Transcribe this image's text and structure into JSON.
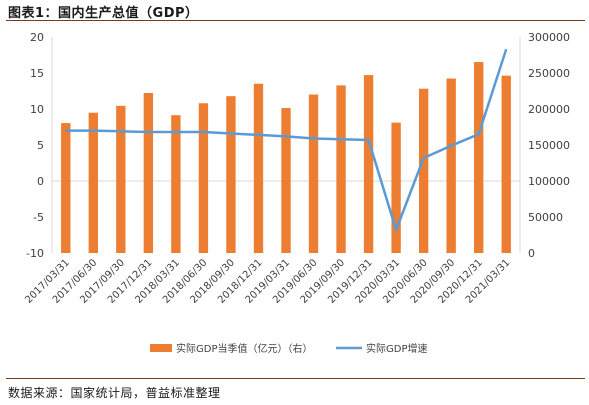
{
  "figure_title": "图表1：国内生产总值（GDP）",
  "source_note": "数据来源：国家统计局，普益标准整理",
  "colors": {
    "bar": "#ED7D31",
    "line": "#5B9BD5",
    "axis": "#d9d9d9",
    "text": "#404040"
  },
  "chart_data": {
    "type": "bar+line",
    "categories": [
      "2017/03/31",
      "2017/06/30",
      "2017/09/30",
      "2017/12/31",
      "2018/03/31",
      "2018/06/30",
      "2018/09/30",
      "2018/12/31",
      "2019/03/31",
      "2019/06/30",
      "2019/09/30",
      "2019/12/31",
      "2020/03/31",
      "2020/06/30",
      "2020/09/30",
      "2020/12/31",
      "2021/03/31"
    ],
    "series": [
      {
        "name": "实际GDP当季值（亿元）（右）",
        "kind": "bar",
        "axis": "right",
        "values": [
          180400,
          194800,
          204400,
          222200,
          191400,
          208000,
          217800,
          235100,
          201300,
          220100,
          232800,
          247100,
          181100,
          228200,
          242300,
          265200,
          246300
        ]
      },
      {
        "name": "实际GDP增速",
        "kind": "line",
        "axis": "left",
        "values": [
          7.0,
          7.0,
          6.9,
          6.8,
          6.8,
          6.8,
          6.6,
          6.4,
          6.2,
          5.9,
          5.8,
          5.7,
          -6.8,
          3.2,
          4.9,
          6.5,
          18.3
        ]
      }
    ],
    "left_axis": {
      "ylim": [
        -10,
        20
      ],
      "ticks": [
        -10,
        -5,
        0,
        5,
        10,
        15,
        20
      ]
    },
    "right_axis": {
      "ylim": [
        0,
        300000
      ],
      "ticks": [
        0,
        50000,
        100000,
        150000,
        200000,
        250000,
        300000
      ]
    },
    "legend_position": "bottom"
  }
}
